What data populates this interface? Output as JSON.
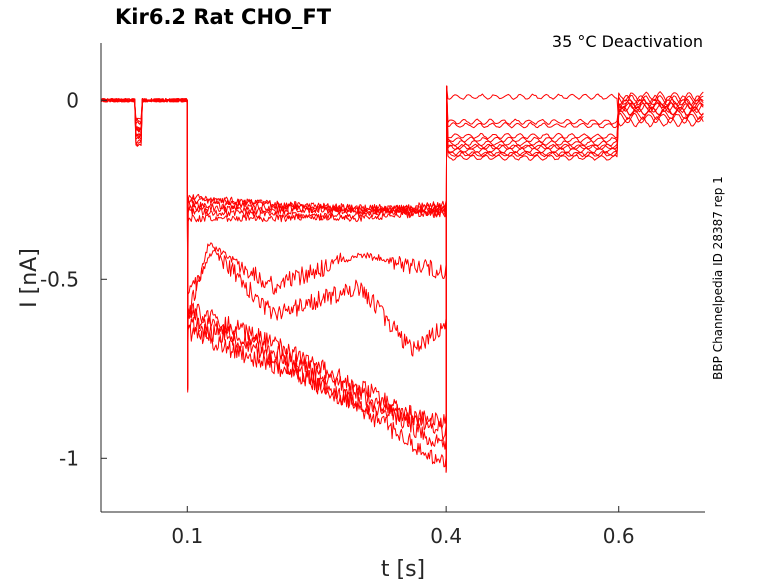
{
  "chart_data": {
    "type": "line",
    "title": "Kir6.2  Rat  CHO_FT",
    "annotation": "35 °C  Deactivation",
    "side_label": "BBP Channelpedia ID 28387 rep 1",
    "xlabel": "t [s]",
    "ylabel": "I [nA]",
    "xlim": [
      0.0,
      0.7
    ],
    "ylim": [
      -1.15,
      0.16
    ],
    "x_ticks": [
      0.1,
      0.4,
      0.6
    ],
    "x_tick_labels": [
      "0.1",
      "0.4",
      "0.6"
    ],
    "y_ticks": [
      0,
      -0.5,
      -1
    ],
    "y_tick_labels": [
      "0",
      "-0.5",
      "-1"
    ],
    "grid": false,
    "color": "#ff0000",
    "protocol": {
      "baseline_until": 0.1,
      "prepulse": [
        0.04,
        0.048
      ],
      "step_start": 0.1,
      "step_end": 0.4,
      "tail_end": 0.6
    },
    "series": [
      {
        "baseline": 0.0,
        "step_points": [
          [
            0.101,
            -0.27
          ],
          [
            0.2,
            -0.29
          ],
          [
            0.3,
            -0.3
          ],
          [
            0.399,
            -0.3
          ]
        ],
        "tail": -0.13,
        "post": -0.02
      },
      {
        "baseline": 0.0,
        "step_points": [
          [
            0.101,
            -0.28
          ],
          [
            0.2,
            -0.29
          ],
          [
            0.3,
            -0.31
          ],
          [
            0.399,
            -0.29
          ]
        ],
        "tail": -0.15,
        "post": -0.01
      },
      {
        "baseline": 0.0,
        "step_points": [
          [
            0.101,
            -0.29
          ],
          [
            0.2,
            -0.3
          ],
          [
            0.3,
            -0.31
          ],
          [
            0.399,
            -0.31
          ]
        ],
        "tail": -0.12,
        "post": 0.0
      },
      {
        "baseline": 0.0,
        "step_points": [
          [
            0.101,
            -0.3
          ],
          [
            0.2,
            -0.31
          ],
          [
            0.3,
            -0.3
          ],
          [
            0.399,
            -0.32
          ]
        ],
        "tail": -0.16,
        "post": -0.03
      },
      {
        "baseline": 0.0,
        "step_points": [
          [
            0.101,
            -0.31
          ],
          [
            0.2,
            -0.32
          ],
          [
            0.3,
            -0.33
          ],
          [
            0.399,
            -0.31
          ]
        ],
        "tail": -0.14,
        "post": -0.04
      },
      {
        "baseline": 0.0,
        "step_points": [
          [
            0.101,
            -0.33
          ],
          [
            0.2,
            -0.33
          ],
          [
            0.3,
            -0.32
          ],
          [
            0.399,
            -0.3
          ]
        ],
        "tail": -0.1,
        "post": 0.01
      },
      {
        "baseline": 0.0,
        "step_points": [
          [
            0.101,
            -0.6
          ],
          [
            0.125,
            -0.4
          ],
          [
            0.2,
            -0.52
          ],
          [
            0.3,
            -0.43
          ],
          [
            0.399,
            -0.48
          ]
        ],
        "tail": -0.07,
        "post": -0.02
      },
      {
        "baseline": 0.0,
        "step_points": [
          [
            0.101,
            -0.55
          ],
          [
            0.13,
            -0.42
          ],
          [
            0.2,
            -0.6
          ],
          [
            0.3,
            -0.52
          ],
          [
            0.36,
            -0.7
          ],
          [
            0.399,
            -0.63
          ]
        ],
        "tail": -0.06,
        "post": -0.01
      },
      {
        "baseline": 0.0,
        "step_points": [
          [
            0.101,
            -0.58
          ],
          [
            0.2,
            -0.68
          ],
          [
            0.3,
            -0.8
          ],
          [
            0.399,
            -0.93
          ]
        ],
        "tail": -0.13,
        "post": -0.03
      },
      {
        "baseline": 0.0,
        "step_points": [
          [
            0.101,
            -0.6
          ],
          [
            0.2,
            -0.7
          ],
          [
            0.3,
            -0.82
          ],
          [
            0.399,
            -0.97
          ]
        ],
        "tail": -0.15,
        "post": -0.05
      },
      {
        "baseline": 0.0,
        "step_points": [
          [
            0.101,
            -0.62
          ],
          [
            0.2,
            -0.72
          ],
          [
            0.3,
            -0.86
          ],
          [
            0.399,
            -1.02
          ]
        ],
        "tail": -0.11,
        "post": 0.0
      },
      {
        "baseline": 0.0,
        "step_points": [
          [
            0.101,
            -0.65
          ],
          [
            0.2,
            -0.74
          ],
          [
            0.3,
            -0.85
          ],
          [
            0.399,
            -0.9
          ]
        ],
        "tail": 0.01,
        "post": -0.06
      }
    ]
  }
}
